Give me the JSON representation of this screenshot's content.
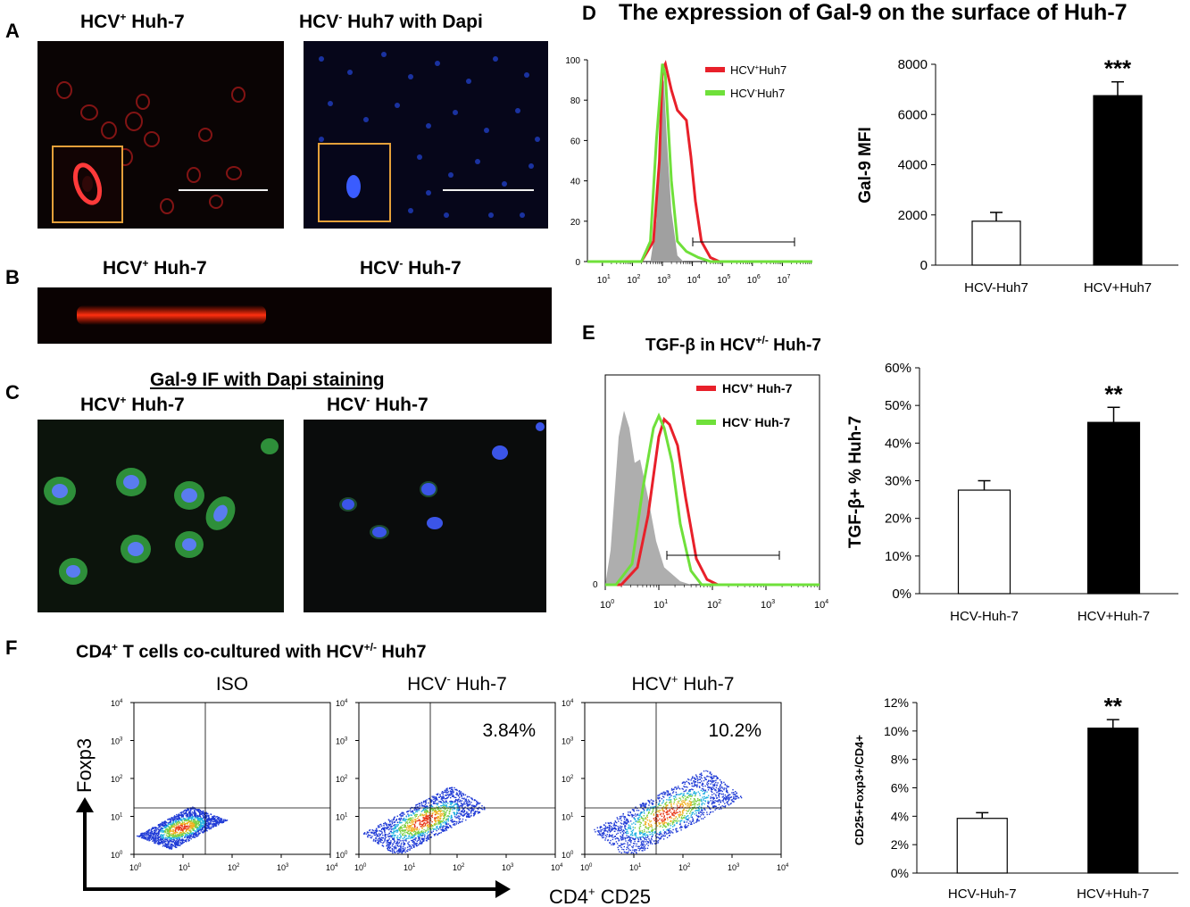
{
  "panels": {
    "A": {
      "letter": "A",
      "left_title_main": "HCV",
      "left_title_sup": "+",
      "left_title_rest": " Huh-7",
      "right_title_main": "HCV",
      "right_title_sup": "-",
      "right_title_rest": " Huh7 with Dapi"
    },
    "B": {
      "letter": "B",
      "left_title_main": "HCV",
      "left_title_sup": "+",
      "left_title_rest": " Huh-7",
      "right_title_main": "HCV",
      "right_title_sup": "-",
      "right_title_rest": " Huh-7"
    },
    "C": {
      "letter": "C",
      "heading": "Gal-9 IF with Dapi staining",
      "left_title_main": "HCV",
      "left_title_sup": "+",
      "left_title_rest": " Huh-7",
      "right_title_main": "HCV",
      "right_title_sup": "-",
      "right_title_rest": " Huh-7"
    },
    "D": {
      "letter": "D",
      "title": "The expression of Gal-9 on the surface of Huh-7",
      "legend": [
        {
          "main": "HCV",
          "sup": "+",
          "rest": "Huh7",
          "color": "#e8202a"
        },
        {
          "main": "HCV",
          "sup": "-",
          "rest": "Huh7",
          "color": "#6fe03a"
        }
      ]
    },
    "E": {
      "letter": "E",
      "title_main": "TGF-β in HCV",
      "title_sup": "+/-",
      "title_rest": " Huh-7",
      "legend": [
        {
          "main": "HCV",
          "sup": "+",
          "rest": " Huh-7",
          "color": "#e8202a"
        },
        {
          "main": "HCV",
          "sup": "-",
          "rest": " Huh-7",
          "color": "#6fe03a"
        }
      ]
    },
    "F": {
      "letter": "F",
      "title_main": "CD4",
      "title_sup": "+",
      "title_mid": " T cells co-cultured with  HCV",
      "title_sup2": "+/-",
      "title_rest": " Huh7",
      "plots": [
        {
          "title_main": "ISO",
          "title_sup": "",
          "title_rest": "",
          "percent": ""
        },
        {
          "title_main": "HCV",
          "title_sup": "-",
          "title_rest": " Huh-7",
          "percent": "3.84%"
        },
        {
          "title_main": "HCV",
          "title_sup": "+",
          "title_rest": " Huh-7",
          "percent": "10.2%"
        }
      ],
      "y_axis_label": "Foxp3",
      "x_axis_label_main": "CD4",
      "x_axis_label_sup": "+",
      "x_axis_label_rest": " CD25",
      "log_ticks": [
        "10",
        "10",
        "10",
        "10",
        "10"
      ],
      "log_exps": [
        "0",
        "1",
        "2",
        "3",
        "4"
      ]
    }
  },
  "colors": {
    "hcv_pos": "#e8202a",
    "hcv_neg": "#6fe03a",
    "isotype": "#a0a0a0"
  },
  "chart_data": [
    {
      "id": "D-histogram",
      "type": "area",
      "ylim": [
        0,
        100
      ],
      "yticks": [
        "0",
        "20",
        "40",
        "60",
        "80",
        "100"
      ],
      "xscale": "log",
      "xticks": [
        "10^1",
        "10^2",
        "10^3",
        "10^4",
        "10^5",
        "10^6",
        "10^7"
      ],
      "series": [
        {
          "name": "HCV+Huh7",
          "x": [
            2.3,
            2.7,
            2.9,
            3.0,
            3.1,
            3.3,
            3.5,
            3.8,
            3.95,
            4.1,
            4.3,
            4.6,
            4.9
          ],
          "values": [
            0,
            10,
            50,
            95,
            98,
            85,
            75,
            70,
            52,
            30,
            10,
            2,
            0
          ]
        },
        {
          "name": "HCV-Huh7",
          "x": [
            2.3,
            2.6,
            2.8,
            3.0,
            3.1,
            3.3,
            3.5,
            3.8,
            4.2,
            4.6
          ],
          "values": [
            0,
            10,
            60,
            98,
            92,
            40,
            10,
            5,
            2,
            0
          ]
        }
      ]
    },
    {
      "id": "D-bar",
      "type": "bar",
      "ylabel": "Gal-9 MFI",
      "ylim": [
        0,
        8000
      ],
      "yticks": [
        "0",
        "2000",
        "4000",
        "6000",
        "8000"
      ],
      "categories": [
        "HCV-Huh7",
        "HCV+Huh7"
      ],
      "values": [
        1750,
        6750
      ],
      "errors": [
        350,
        550
      ],
      "significance": [
        "",
        "***"
      ],
      "fill": [
        "#ffffff",
        "#000000"
      ]
    },
    {
      "id": "E-histogram",
      "type": "area",
      "xscale": "log",
      "xticks": [
        "10^0",
        "10^1",
        "10^2",
        "10^3",
        "10^4"
      ],
      "yticks": [
        "0"
      ],
      "series": [
        {
          "name": "HCV+ Huh-7",
          "x": [
            0.3,
            0.6,
            0.8,
            1.0,
            1.1,
            1.2,
            1.35,
            1.5,
            1.7,
            1.9,
            2.1
          ],
          "values": [
            0,
            10,
            40,
            85,
            95,
            92,
            80,
            50,
            15,
            3,
            0
          ]
        },
        {
          "name": "HCV- Huh-7",
          "x": [
            0.2,
            0.5,
            0.7,
            0.9,
            1.0,
            1.1,
            1.25,
            1.4,
            1.6,
            1.8
          ],
          "values": [
            0,
            12,
            55,
            90,
            97,
            90,
            70,
            35,
            8,
            0
          ]
        }
      ]
    },
    {
      "id": "E-bar",
      "type": "bar",
      "ylabel": "TGF-β+ % Huh-7",
      "ylim": [
        0,
        60
      ],
      "yticks": [
        "0%",
        "10%",
        "20%",
        "30%",
        "40%",
        "50%",
        "60%"
      ],
      "categories": [
        "HCV-Huh-7",
        "HCV+Huh-7"
      ],
      "values": [
        27.5,
        45.5
      ],
      "errors": [
        2.5,
        4
      ],
      "significance": [
        "",
        "**"
      ],
      "fill": [
        "#ffffff",
        "#000000"
      ]
    },
    {
      "id": "F-bar",
      "type": "bar",
      "ylabel": "CD25+Foxp3+/CD4+",
      "ylim": [
        0,
        12
      ],
      "yticks": [
        "0%",
        "2%",
        "4%",
        "6%",
        "8%",
        "10%",
        "12%"
      ],
      "categories": [
        "HCV-Huh-7",
        "HCV+Huh-7"
      ],
      "values": [
        3.85,
        10.2
      ],
      "errors": [
        0.4,
        0.6
      ],
      "significance": [
        "",
        "**"
      ],
      "fill": [
        "#ffffff",
        "#000000"
      ]
    }
  ]
}
